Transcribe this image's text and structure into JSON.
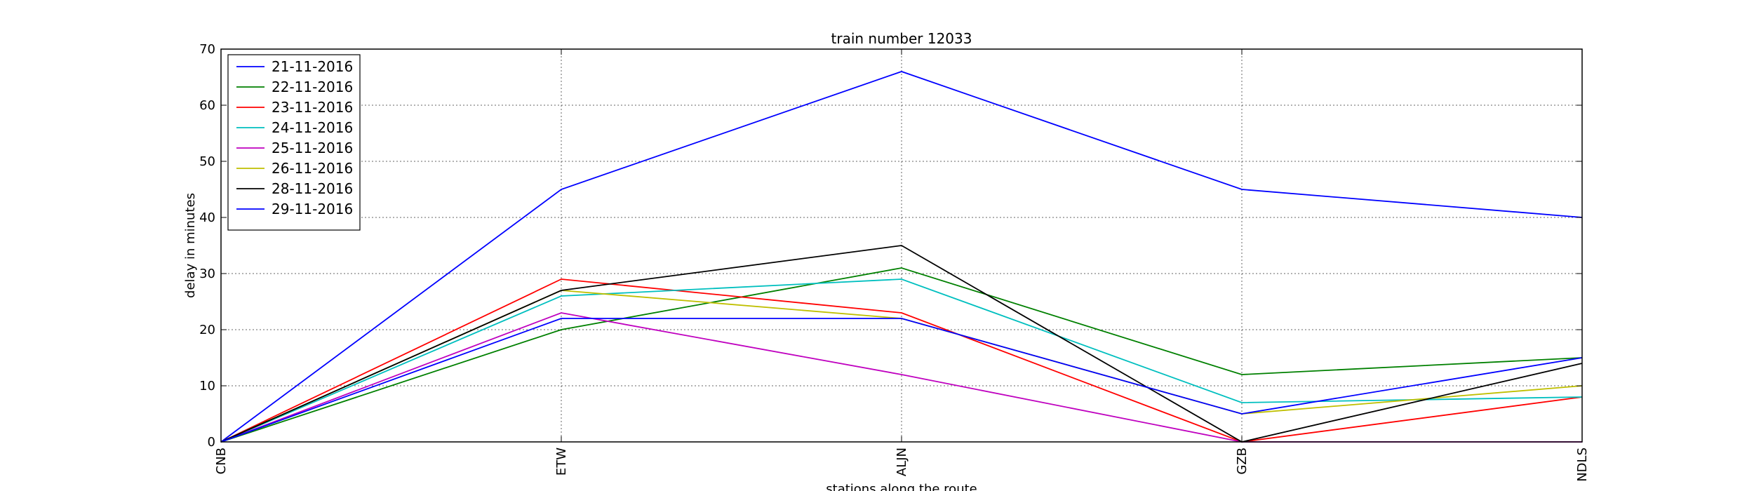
{
  "chart_data": {
    "type": "line",
    "title": "train number 12033",
    "xlabel": "stations along the route",
    "ylabel": "delay in minutes",
    "categories": [
      "CNB",
      "ETW",
      "ALJN",
      "GZB",
      "NDLS"
    ],
    "ylim": [
      0,
      70
    ],
    "yticks": [
      0,
      10,
      20,
      30,
      40,
      50,
      60,
      70
    ],
    "grid": true,
    "legend_position": "top-left",
    "series": [
      {
        "name": "21-11-2016",
        "color": "#0000ff",
        "values": [
          0,
          45,
          66,
          45,
          40
        ]
      },
      {
        "name": "22-11-2016",
        "color": "#008000",
        "values": [
          0,
          20,
          31,
          12,
          15
        ]
      },
      {
        "name": "23-11-2016",
        "color": "#ff0000",
        "values": [
          0,
          29,
          23,
          0,
          8
        ]
      },
      {
        "name": "24-11-2016",
        "color": "#00bfbf",
        "values": [
          0,
          26,
          29,
          7,
          8
        ]
      },
      {
        "name": "25-11-2016",
        "color": "#bf00bf",
        "values": [
          0,
          23,
          12,
          0,
          0
        ]
      },
      {
        "name": "26-11-2016",
        "color": "#bfbf00",
        "values": [
          0,
          27,
          22,
          5,
          10
        ]
      },
      {
        "name": "28-11-2016",
        "color": "#000000",
        "values": [
          0,
          27,
          35,
          0,
          14
        ]
      },
      {
        "name": "29-11-2016",
        "color": "#0000ff",
        "values": [
          0,
          22,
          22,
          5,
          15
        ]
      }
    ]
  }
}
